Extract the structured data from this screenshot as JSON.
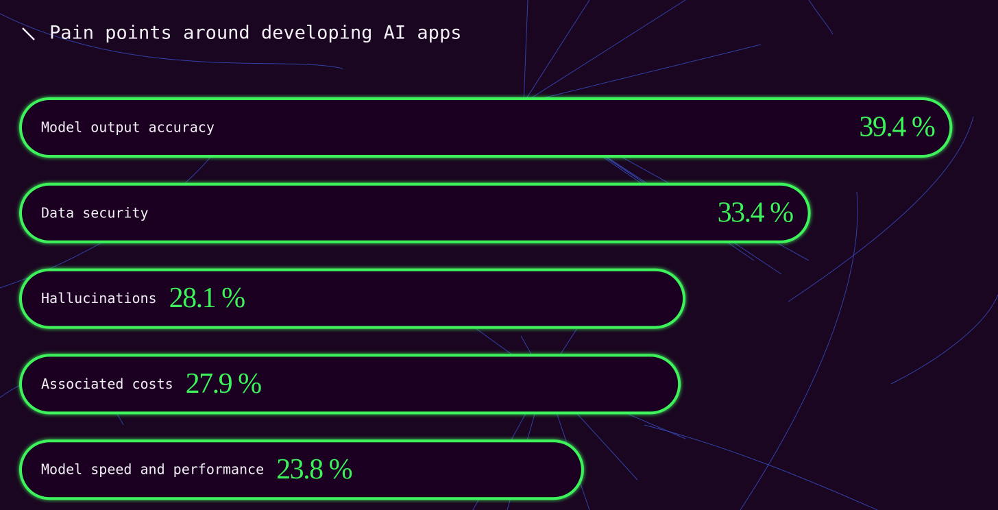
{
  "chart_data": {
    "type": "bar",
    "orientation": "horizontal",
    "title": "Pain points around developing AI apps",
    "categories": [
      "Model output accuracy",
      "Data security",
      "Hallucinations",
      "Associated costs",
      "Model speed and performance"
    ],
    "values": [
      39.4,
      33.4,
      28.1,
      27.9,
      23.8
    ],
    "value_labels": [
      "39.4 %",
      "33.4 %",
      "28.1 %",
      "27.9 %",
      "23.8 %"
    ],
    "color": "#3df25a"
  }
}
